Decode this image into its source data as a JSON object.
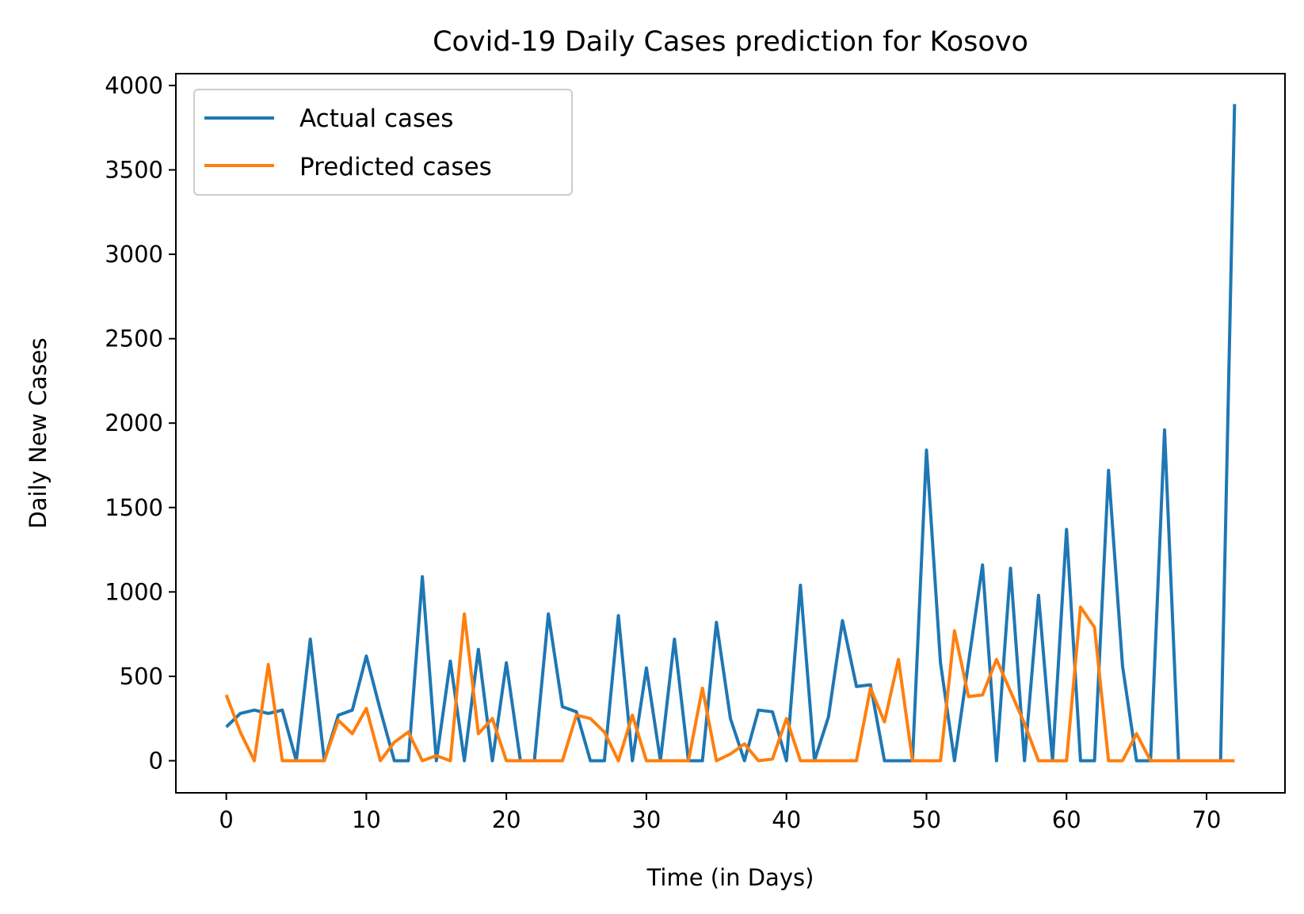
{
  "chart_data": {
    "type": "line",
    "title": "Covid-19 Daily Cases prediction for Kosovo",
    "xlabel": "Time (in Days)",
    "ylabel": "Daily New Cases",
    "xlim": [
      -3.6,
      75.6
    ],
    "ylim": [
      -190,
      4070
    ],
    "xticks": [
      0,
      10,
      20,
      30,
      40,
      50,
      60,
      70
    ],
    "yticks": [
      0,
      500,
      1000,
      1500,
      2000,
      2500,
      3000,
      3500,
      4000
    ],
    "grid": false,
    "legend_position": "upper left",
    "x": [
      0,
      1,
      2,
      3,
      4,
      5,
      6,
      7,
      8,
      9,
      10,
      11,
      12,
      13,
      14,
      15,
      16,
      17,
      18,
      19,
      20,
      21,
      22,
      23,
      24,
      25,
      26,
      27,
      28,
      29,
      30,
      31,
      32,
      33,
      34,
      35,
      36,
      37,
      38,
      39,
      40,
      41,
      42,
      43,
      44,
      45,
      46,
      47,
      48,
      49,
      50,
      51,
      52,
      53,
      54,
      55,
      56,
      57,
      58,
      59,
      60,
      61,
      62,
      63,
      64,
      65,
      66,
      67,
      68,
      69,
      70,
      71,
      72
    ],
    "series": [
      {
        "name": "Actual cases",
        "color": "#1f77b4",
        "values": [
          200,
          280,
          300,
          280,
          300,
          0,
          720,
          0,
          270,
          300,
          620,
          300,
          0,
          0,
          1090,
          0,
          590,
          0,
          660,
          0,
          580,
          0,
          0,
          870,
          320,
          290,
          0,
          0,
          860,
          0,
          550,
          0,
          720,
          0,
          0,
          820,
          250,
          0,
          300,
          290,
          0,
          1040,
          0,
          260,
          830,
          440,
          450,
          0,
          0,
          0,
          1840,
          580,
          0,
          580,
          1160,
          0,
          1140,
          0,
          980,
          0,
          1370,
          0,
          0,
          1720,
          560,
          0,
          0,
          1960,
          0,
          0,
          0,
          0,
          3890
        ]
      },
      {
        "name": "Predicted cases",
        "color": "#ff7f0e",
        "values": [
          390,
          170,
          0,
          570,
          0,
          0,
          0,
          0,
          240,
          160,
          310,
          0,
          110,
          170,
          0,
          30,
          0,
          870,
          160,
          250,
          0,
          0,
          0,
          0,
          0,
          270,
          250,
          170,
          0,
          270,
          0,
          0,
          0,
          0,
          430,
          0,
          40,
          100,
          0,
          10,
          250,
          0,
          0,
          0,
          0,
          0,
          430,
          230,
          600,
          0,
          0,
          0,
          770,
          380,
          390,
          600,
          410,
          220,
          0,
          0,
          0,
          910,
          790,
          0,
          0,
          160,
          0,
          0,
          0,
          0,
          0,
          0,
          0
        ]
      }
    ]
  }
}
